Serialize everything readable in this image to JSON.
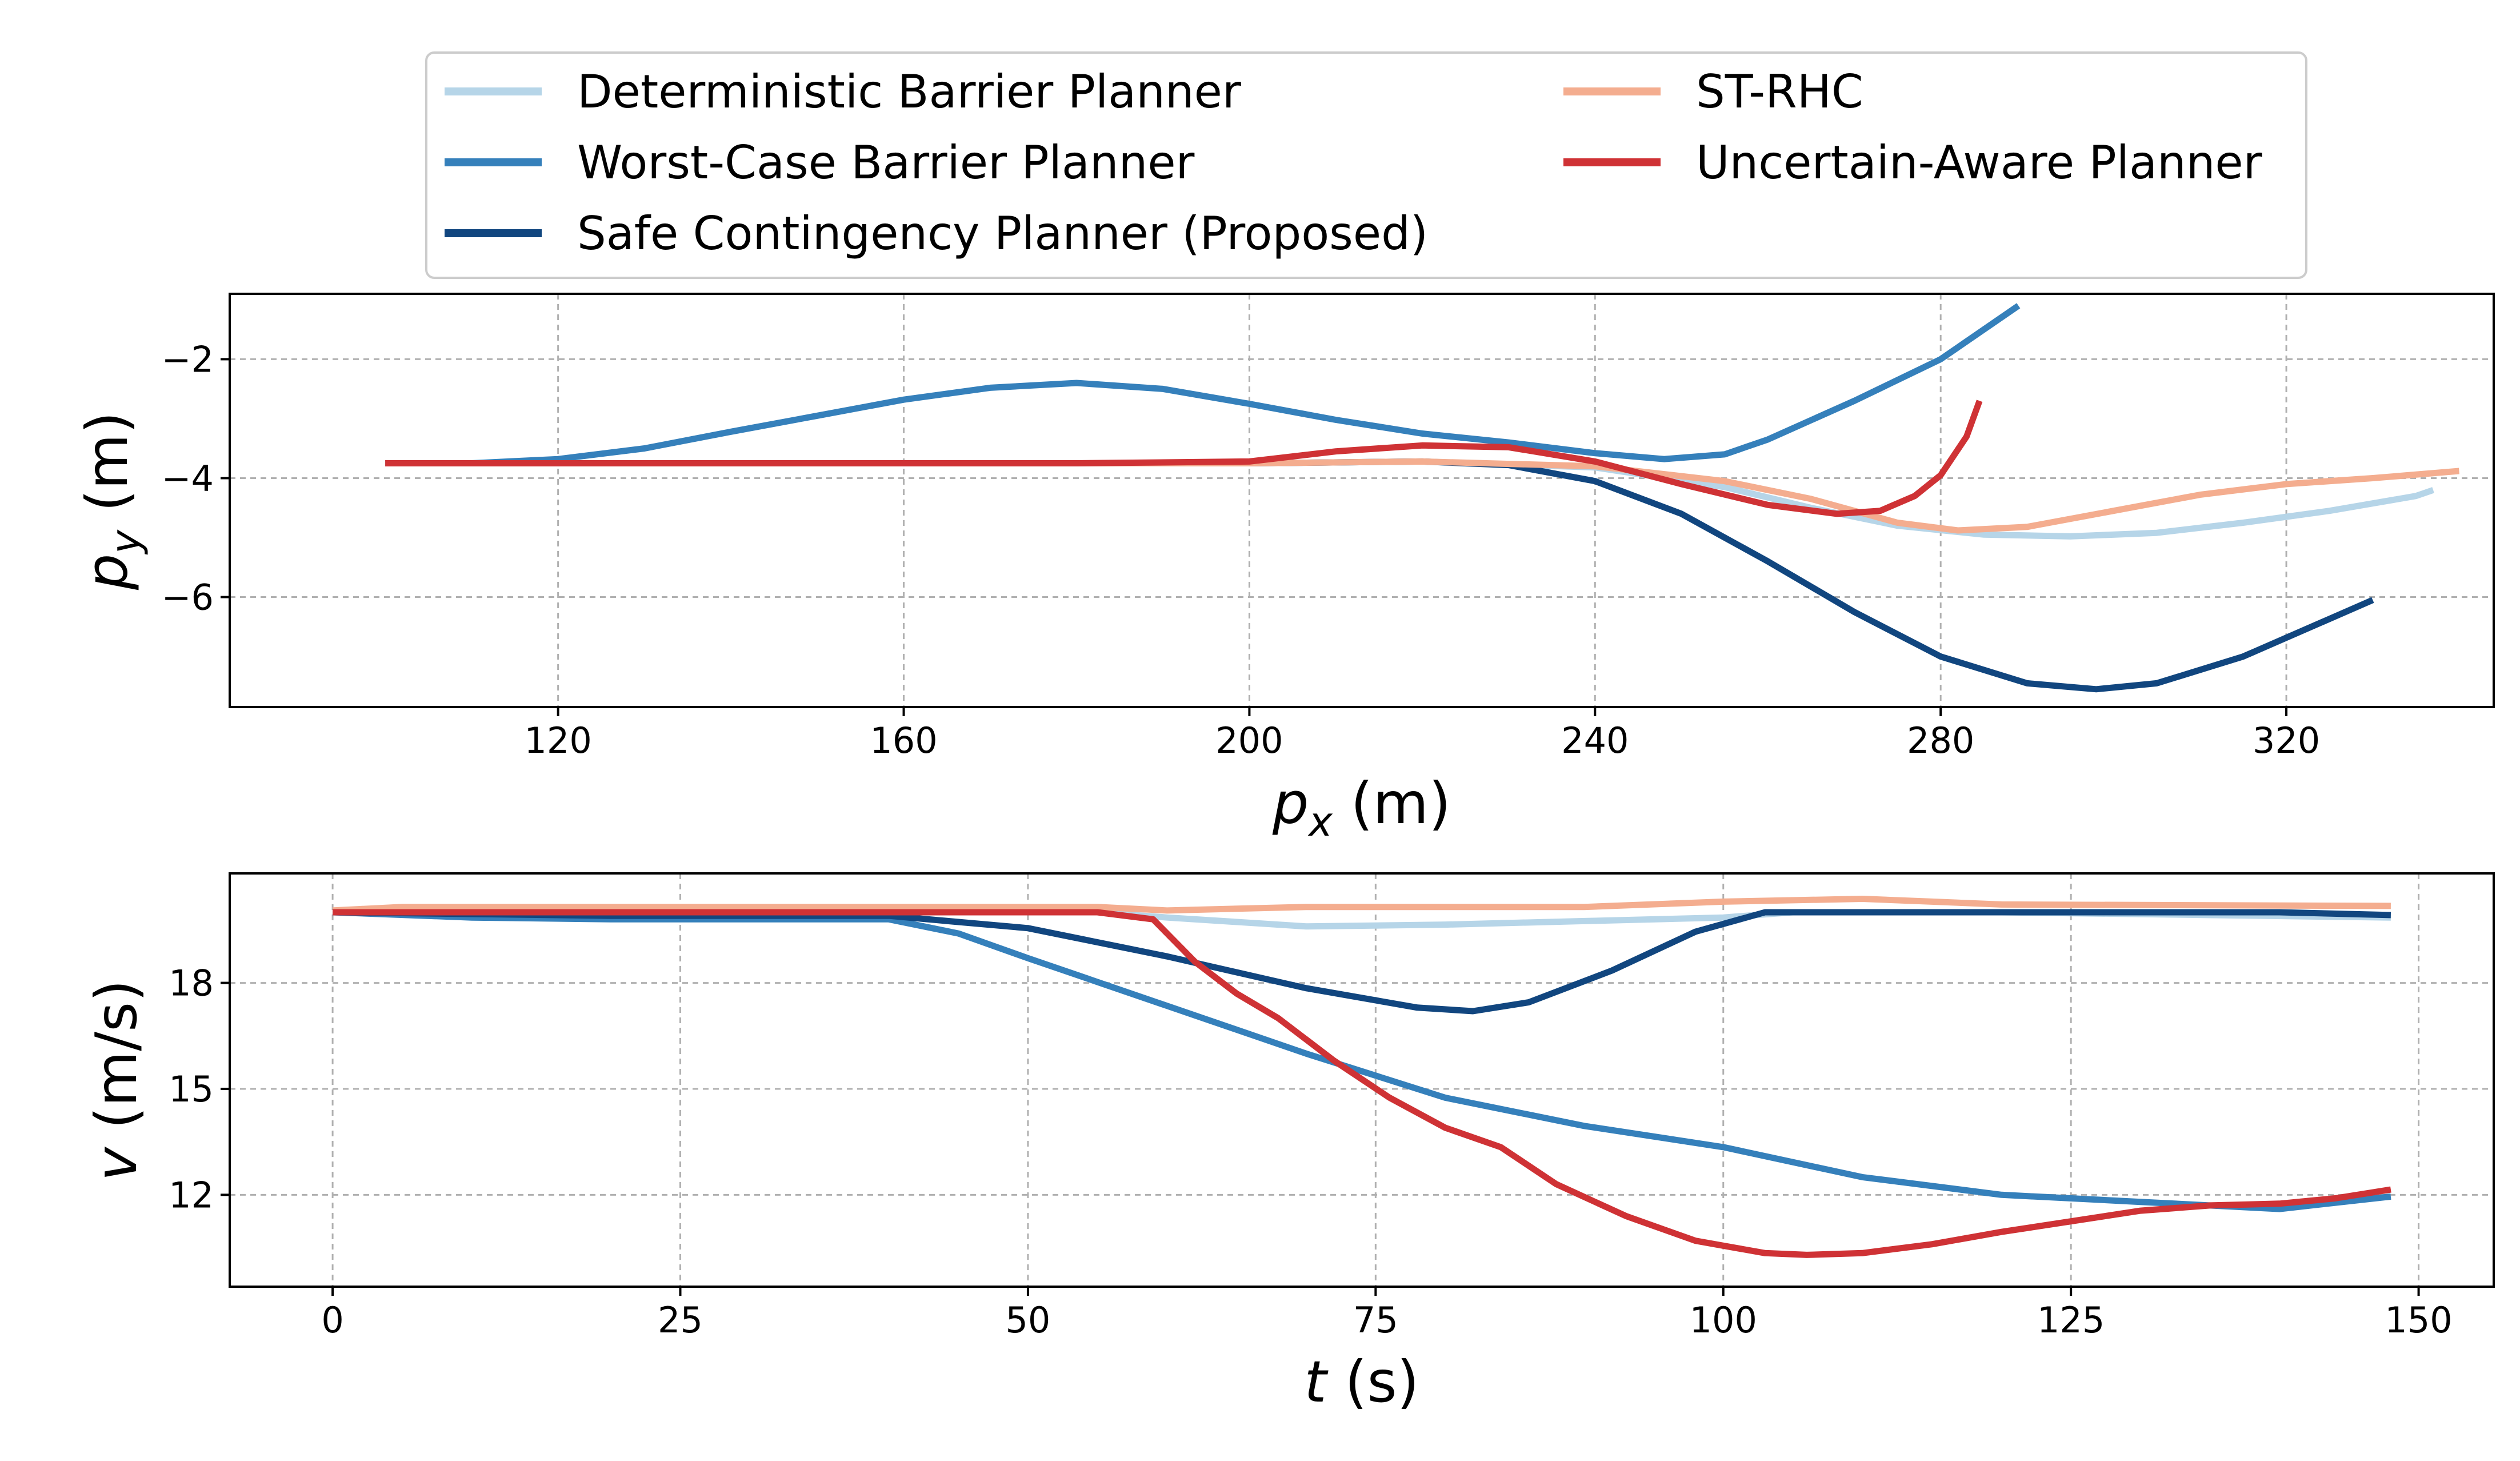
{
  "legend": {
    "entries": [
      {
        "label": "Deterministic Barrier Planner",
        "color": "#b6d5e8"
      },
      {
        "label": "Worst-Case Barrier Planner",
        "color": "#3580bb"
      },
      {
        "label": "Safe Contingency Planner (Proposed)",
        "color": "#11467f"
      },
      {
        "label": "ST-RHC",
        "color": "#f4ad8f"
      },
      {
        "label": "Uncertain-Aware Planner",
        "color": "#cf3235"
      }
    ]
  },
  "chart_data": [
    {
      "type": "line",
      "title": "",
      "xlabel_main": "p",
      "xlabel_sub": "x",
      "xlabel_unit": " (m)",
      "ylabel_main": "p",
      "ylabel_sub": "y",
      "ylabel_unit": " (m)",
      "xlim": [
        82,
        344
      ],
      "ylim": [
        -7.85,
        -0.9
      ],
      "xticks": [
        120,
        160,
        200,
        240,
        280,
        320
      ],
      "xtick_labels": [
        "120",
        "160",
        "200",
        "240",
        "280",
        "320"
      ],
      "yticks": [
        -2,
        -4,
        -6
      ],
      "ytick_labels": [
        "−2",
        "−4",
        "−6"
      ],
      "grid": true,
      "series": [
        {
          "name": "Deterministic Barrier Planner",
          "color": "#b6d5e8",
          "x": [
            100,
            120,
            160,
            200,
            220,
            240,
            255,
            265,
            275,
            285,
            295,
            305,
            315,
            325,
            335,
            337
          ],
          "y": [
            -3.75,
            -3.75,
            -3.75,
            -3.75,
            -3.72,
            -3.82,
            -4.15,
            -4.5,
            -4.8,
            -4.95,
            -4.98,
            -4.92,
            -4.75,
            -4.55,
            -4.3,
            -4.2
          ]
        },
        {
          "name": "Worst-Case Barrier Planner",
          "color": "#3580bb",
          "x": [
            100,
            110,
            120,
            130,
            140,
            150,
            160,
            170,
            180,
            190,
            200,
            210,
            220,
            230,
            240,
            248,
            255,
            260,
            270,
            280,
            289
          ],
          "y": [
            -3.75,
            -3.75,
            -3.68,
            -3.5,
            -3.22,
            -2.95,
            -2.68,
            -2.48,
            -2.4,
            -2.5,
            -2.75,
            -3.02,
            -3.25,
            -3.4,
            -3.58,
            -3.68,
            -3.6,
            -3.35,
            -2.7,
            -2.0,
            -1.1
          ]
        },
        {
          "name": "Safe Contingency Planner (Proposed)",
          "color": "#11467f",
          "x": [
            100,
            140,
            180,
            200,
            220,
            230,
            240,
            250,
            260,
            270,
            280,
            290,
            298,
            305,
            315,
            330
          ],
          "y": [
            -3.75,
            -3.75,
            -3.75,
            -3.75,
            -3.72,
            -3.78,
            -4.05,
            -4.6,
            -5.4,
            -6.25,
            -7.0,
            -7.45,
            -7.55,
            -7.45,
            -7.0,
            -6.05
          ]
        },
        {
          "name": "ST-RHC",
          "color": "#f4ad8f",
          "x": [
            100,
            140,
            180,
            200,
            220,
            240,
            255,
            265,
            275,
            282,
            290,
            300,
            310,
            320,
            330,
            340
          ],
          "y": [
            -3.75,
            -3.75,
            -3.75,
            -3.75,
            -3.72,
            -3.8,
            -4.05,
            -4.35,
            -4.75,
            -4.88,
            -4.82,
            -4.55,
            -4.28,
            -4.1,
            -4.0,
            -3.88
          ]
        },
        {
          "name": "Uncertain-Aware Planner",
          "color": "#cf3235",
          "x": [
            100,
            140,
            180,
            200,
            210,
            220,
            230,
            240,
            250,
            260,
            268,
            273,
            277,
            280,
            283,
            284.5
          ],
          "y": [
            -3.75,
            -3.75,
            -3.75,
            -3.72,
            -3.55,
            -3.45,
            -3.48,
            -3.72,
            -4.1,
            -4.45,
            -4.6,
            -4.55,
            -4.3,
            -3.95,
            -3.3,
            -2.7
          ]
        }
      ]
    },
    {
      "type": "line",
      "title": "",
      "xlabel_main": "t",
      "xlabel_sub": "",
      "xlabel_unit": " (s)",
      "ylabel_main": "v",
      "ylabel_sub": "",
      "ylabel_unit": " (m/s)",
      "xlim": [
        -7.4,
        155.4
      ],
      "ylim": [
        9.4,
        21.1
      ],
      "xticks": [
        0,
        25,
        50,
        75,
        100,
        125,
        150
      ],
      "xtick_labels": [
        "0",
        "25",
        "50",
        "75",
        "100",
        "125",
        "150"
      ],
      "yticks": [
        12,
        15,
        18
      ],
      "ytick_labels": [
        "12",
        "15",
        "18"
      ],
      "grid": true,
      "series": [
        {
          "name": "Deterministic Barrier Planner",
          "color": "#b6d5e8",
          "x": [
            0,
            10,
            40,
            55,
            60,
            70,
            80,
            90,
            100,
            105,
            120,
            148
          ],
          "y": [
            20.0,
            20.0,
            20.0,
            20.0,
            19.85,
            19.6,
            19.65,
            19.75,
            19.85,
            20.0,
            20.0,
            19.85
          ]
        },
        {
          "name": "Worst-Case Barrier Planner",
          "color": "#3580bb",
          "x": [
            0,
            10,
            20,
            40,
            45,
            50,
            60,
            70,
            80,
            90,
            100,
            110,
            120,
            130,
            140,
            148
          ],
          "y": [
            20.0,
            19.85,
            19.8,
            19.8,
            19.4,
            18.7,
            17.35,
            16.0,
            14.75,
            13.95,
            13.35,
            12.5,
            12.0,
            11.8,
            11.6,
            11.95
          ]
        },
        {
          "name": "Safe Contingency Planner (Proposed)",
          "color": "#11467f",
          "x": [
            0,
            20,
            40,
            50,
            60,
            70,
            78,
            82,
            86,
            92,
            98,
            103,
            110,
            120,
            140,
            148
          ],
          "y": [
            20.0,
            19.9,
            19.9,
            19.55,
            18.75,
            17.85,
            17.3,
            17.2,
            17.45,
            18.35,
            19.45,
            20.0,
            20.0,
            20.0,
            20.0,
            19.92
          ]
        },
        {
          "name": "ST-RHC",
          "color": "#f4ad8f",
          "x": [
            0,
            5,
            20,
            40,
            55,
            60,
            70,
            90,
            100,
            110,
            115,
            120,
            148
          ],
          "y": [
            20.05,
            20.15,
            20.15,
            20.15,
            20.15,
            20.05,
            20.15,
            20.15,
            20.3,
            20.38,
            20.3,
            20.22,
            20.18
          ]
        },
        {
          "name": "Uncertain-Aware Planner",
          "color": "#cf3235",
          "x": [
            0,
            20,
            40,
            55,
            59,
            62,
            65,
            68,
            72,
            76,
            80,
            84,
            88,
            93,
            98,
            103,
            106,
            110,
            115,
            120,
            125,
            130,
            135,
            140,
            144,
            148
          ],
          "y": [
            20.0,
            20.0,
            20.0,
            20.0,
            19.8,
            18.6,
            17.7,
            17.0,
            15.8,
            14.75,
            13.9,
            13.35,
            12.3,
            11.4,
            10.7,
            10.35,
            10.3,
            10.35,
            10.6,
            10.95,
            11.25,
            11.55,
            11.7,
            11.75,
            11.9,
            12.15
          ]
        }
      ]
    }
  ]
}
